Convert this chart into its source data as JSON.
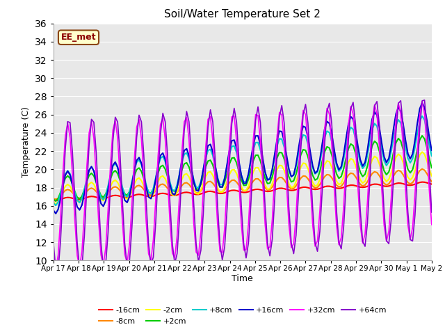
{
  "title": "Soil/Water Temperature Set 2",
  "xlabel": "Time",
  "ylabel": "Temperature (C)",
  "annotation": "EE_met",
  "annotation_bg": "#ffffcc",
  "annotation_border": "#8B4513",
  "annotation_text_color": "#8B0000",
  "ylim": [
    10,
    36
  ],
  "yticks": [
    10,
    12,
    14,
    16,
    18,
    20,
    22,
    24,
    26,
    28,
    30,
    32,
    34,
    36
  ],
  "xtick_labels": [
    "Apr 17",
    "Apr 18",
    "Apr 19",
    "Apr 20",
    "Apr 21",
    "Apr 22",
    "Apr 23",
    "Apr 24",
    "Apr 25",
    "Apr 26",
    "Apr 27",
    "Apr 28",
    "Apr 29",
    "Apr 30",
    "May 1",
    "May 2"
  ],
  "bg_color": "#e8e8e8",
  "series": [
    {
      "label": "-16cm",
      "color": "#ff0000",
      "lw": 1.5
    },
    {
      "label": "-8cm",
      "color": "#ff8800",
      "lw": 1.5
    },
    {
      "label": "-2cm",
      "color": "#ffff00",
      "lw": 1.5
    },
    {
      "label": "+2cm",
      "color": "#00cc00",
      "lw": 1.5
    },
    {
      "label": "+8cm",
      "color": "#00cccc",
      "lw": 1.5
    },
    {
      "label": "+16cm",
      "color": "#0000cc",
      "lw": 1.5
    },
    {
      "label": "+32cm",
      "color": "#ff00ff",
      "lw": 1.2
    },
    {
      "label": "+64cm",
      "color": "#8800cc",
      "lw": 1.2
    }
  ]
}
